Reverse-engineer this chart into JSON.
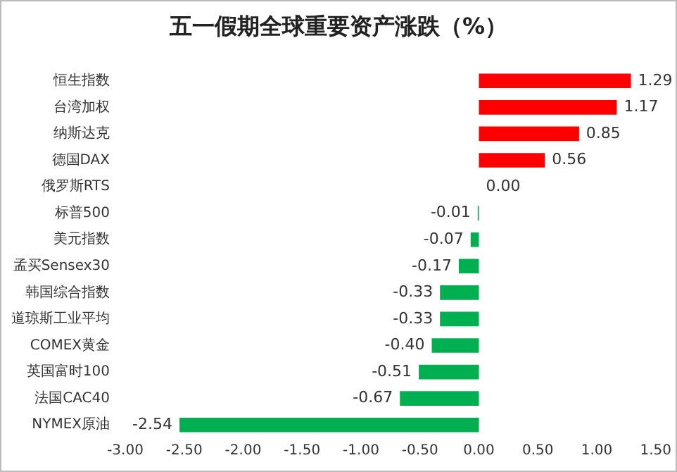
{
  "chart_data": {
    "type": "bar",
    "orientation": "horizontal",
    "title": "五一假期全球重要资产涨跌（%）",
    "categories": [
      "恒生指数",
      "台湾加权",
      "纳斯达克",
      "德国DAX",
      "俄罗斯RTS",
      "标普500",
      "美元指数",
      "孟买Sensex30",
      "韩国综合指数",
      "道琼斯工业平均",
      "COMEX黄金",
      "英国富时100",
      "法国CAC40",
      "NYMEX原油"
    ],
    "values": [
      1.29,
      1.17,
      0.85,
      0.56,
      0.0,
      -0.01,
      -0.07,
      -0.17,
      -0.33,
      -0.33,
      -0.4,
      -0.51,
      -0.67,
      -2.54
    ],
    "colors": [
      "#ff0000",
      "#ff0000",
      "#ff0000",
      "#ff0000",
      "#ff0000",
      "#00b050",
      "#00b050",
      "#00b050",
      "#00b050",
      "#00b050",
      "#00b050",
      "#00b050",
      "#00b050",
      "#00b050"
    ],
    "value_labels": [
      "1.29",
      "1.17",
      "0.85",
      "0.56",
      "0.00",
      "-0.01",
      "-0.07",
      "-0.17",
      "-0.33",
      "-0.33",
      "-0.40",
      "-0.51",
      "-0.67",
      "-2.54"
    ],
    "xlim": [
      -3,
      1.5
    ],
    "xticks": [
      {
        "value": -3,
        "label": "-3.00"
      },
      {
        "value": -2.5,
        "label": "-2.50"
      },
      {
        "value": -2,
        "label": "-2.00"
      },
      {
        "value": -1.5,
        "label": "-1.50"
      },
      {
        "value": -1,
        "label": "-1.00"
      },
      {
        "value": -0.5,
        "label": "-0.50"
      },
      {
        "value": 0,
        "label": "0.00"
      },
      {
        "value": 0.5,
        "label": "0.50"
      },
      {
        "value": 1,
        "label": "1.00"
      },
      {
        "value": 1.5,
        "label": "1.50"
      }
    ],
    "grid": false,
    "legend": false
  }
}
